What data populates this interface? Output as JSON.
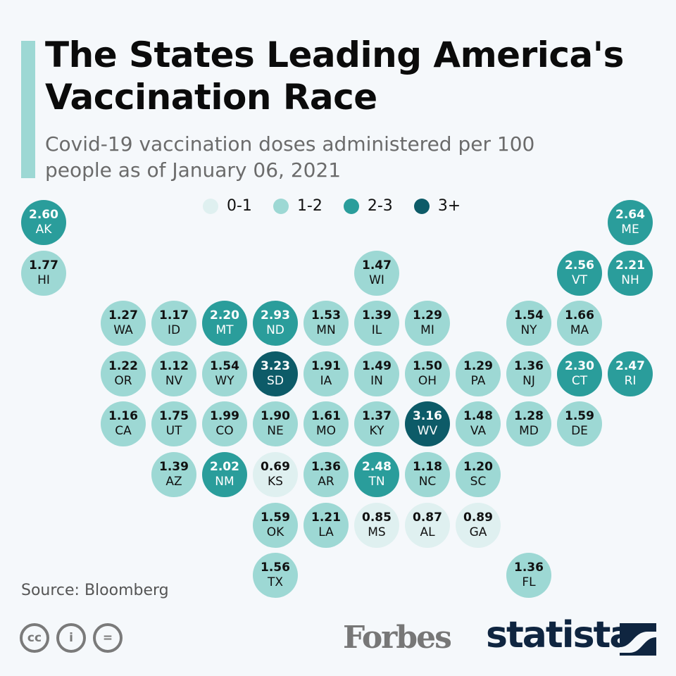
{
  "title": "The States Leading America's Vaccination Race",
  "subtitle": "Covid-19 vaccination doses administered per 100 people as of January 06, 2021",
  "legend": [
    {
      "label": "0-1",
      "color": "#dff0f0"
    },
    {
      "label": "1-2",
      "color": "#9dd8d4"
    },
    {
      "label": "2-3",
      "color": "#2a9d9b"
    },
    {
      "label": "3+",
      "color": "#0d5b68"
    }
  ],
  "source": "Source: Bloomberg",
  "logos": {
    "forbes": "Forbes",
    "statista": "statista"
  },
  "chart_data": {
    "type": "tile-map",
    "unit": "doses per 100 people",
    "states": [
      {
        "code": "AK",
        "value": "2.60"
      },
      {
        "code": "ME",
        "value": "2.64"
      },
      {
        "code": "HI",
        "value": "1.77"
      },
      {
        "code": "WI",
        "value": "1.47"
      },
      {
        "code": "VT",
        "value": "2.56"
      },
      {
        "code": "NH",
        "value": "2.21"
      },
      {
        "code": "WA",
        "value": "1.27"
      },
      {
        "code": "ID",
        "value": "1.17"
      },
      {
        "code": "MT",
        "value": "2.20"
      },
      {
        "code": "ND",
        "value": "2.93"
      },
      {
        "code": "MN",
        "value": "1.53"
      },
      {
        "code": "IL",
        "value": "1.39"
      },
      {
        "code": "MI",
        "value": "1.29"
      },
      {
        "code": "NY",
        "value": "1.54"
      },
      {
        "code": "MA",
        "value": "1.66"
      },
      {
        "code": "OR",
        "value": "1.22"
      },
      {
        "code": "NV",
        "value": "1.12"
      },
      {
        "code": "WY",
        "value": "1.54"
      },
      {
        "code": "SD",
        "value": "3.23"
      },
      {
        "code": "IA",
        "value": "1.91"
      },
      {
        "code": "IN",
        "value": "1.49"
      },
      {
        "code": "OH",
        "value": "1.50"
      },
      {
        "code": "PA",
        "value": "1.29"
      },
      {
        "code": "NJ",
        "value": "1.36"
      },
      {
        "code": "CT",
        "value": "2.30"
      },
      {
        "code": "RI",
        "value": "2.47"
      },
      {
        "code": "CA",
        "value": "1.16"
      },
      {
        "code": "UT",
        "value": "1.75"
      },
      {
        "code": "CO",
        "value": "1.99"
      },
      {
        "code": "NE",
        "value": "1.90"
      },
      {
        "code": "MO",
        "value": "1.61"
      },
      {
        "code": "KY",
        "value": "1.37"
      },
      {
        "code": "WV",
        "value": "3.16"
      },
      {
        "code": "VA",
        "value": "1.48"
      },
      {
        "code": "MD",
        "value": "1.28"
      },
      {
        "code": "DE",
        "value": "1.59"
      },
      {
        "code": "AZ",
        "value": "1.39"
      },
      {
        "code": "NM",
        "value": "2.02"
      },
      {
        "code": "KS",
        "value": "0.69"
      },
      {
        "code": "AR",
        "value": "1.36"
      },
      {
        "code": "TN",
        "value": "2.48"
      },
      {
        "code": "NC",
        "value": "1.18"
      },
      {
        "code": "SC",
        "value": "1.20"
      },
      {
        "code": "OK",
        "value": "1.59"
      },
      {
        "code": "LA",
        "value": "1.21"
      },
      {
        "code": "MS",
        "value": "0.85"
      },
      {
        "code": "AL",
        "value": "0.87"
      },
      {
        "code": "GA",
        "value": "0.89"
      },
      {
        "code": "TX",
        "value": "1.56"
      },
      {
        "code": "FL",
        "value": "1.36"
      }
    ]
  }
}
